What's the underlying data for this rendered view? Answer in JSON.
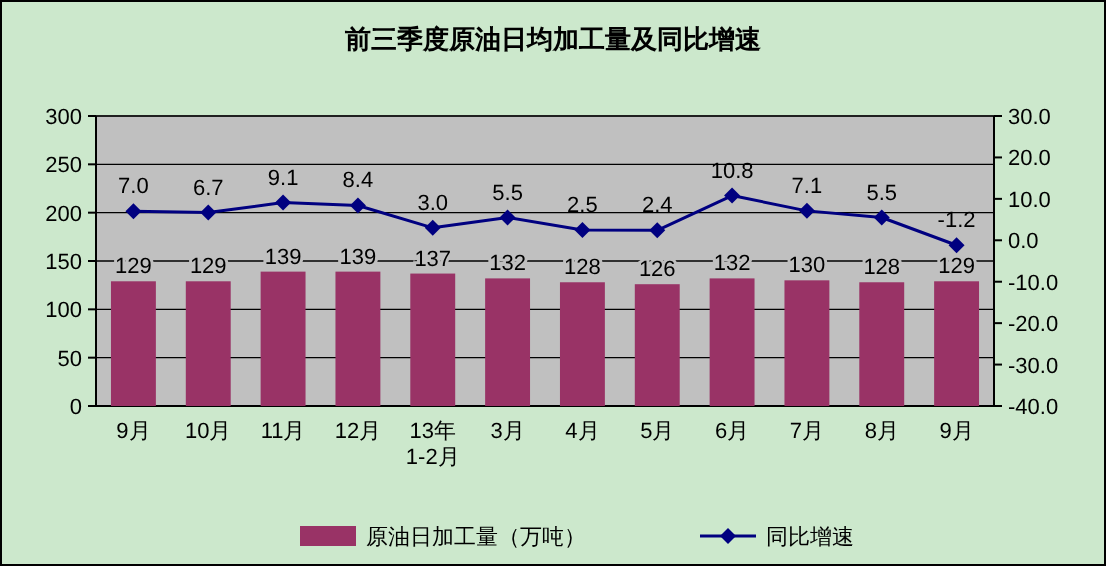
{
  "chart_data": {
    "type": "bar",
    "title": "前三季度原油日均加工量及同比增速",
    "categories": [
      "9月",
      "10月",
      "11月",
      "12月",
      "13年\n1-2月",
      "3月",
      "4月",
      "5月",
      "6月",
      "7月",
      "8月",
      "9月"
    ],
    "series": [
      {
        "name": "原油日加工量（万吨）",
        "color": "#993366",
        "values": [
          129,
          129,
          139,
          139,
          137,
          132,
          128,
          126,
          132,
          130,
          128,
          129
        ],
        "value_labels": [
          "129",
          "129",
          "139",
          "139",
          "137",
          "132",
          "128",
          "126",
          "132",
          "130",
          "128",
          "129"
        ]
      },
      {
        "name": "同比增速",
        "type": "line",
        "axis": "y2",
        "color": "#000080",
        "marker": "diamond",
        "values": [
          7.0,
          6.7,
          9.1,
          8.4,
          3.0,
          5.5,
          2.5,
          2.4,
          10.8,
          7.1,
          5.5,
          -1.2
        ],
        "value_labels": [
          "7.0",
          "6.7",
          "9.1",
          "8.4",
          "3.0",
          "5.5",
          "2.5",
          "2.4",
          "10.8",
          "7.1",
          "5.5",
          "-1.2"
        ]
      }
    ],
    "ylim": [
      0,
      300
    ],
    "yticks": [
      0,
      50,
      100,
      150,
      200,
      250,
      300
    ],
    "y2lim": [
      -40,
      30
    ],
    "y2ticks": [
      {
        "value": -40,
        "label": "-40.0"
      },
      {
        "value": -30,
        "label": "-30.0"
      },
      {
        "value": -20,
        "label": "-20.0"
      },
      {
        "value": -10,
        "label": "-10.0"
      },
      {
        "value": 0,
        "label": "0.0"
      },
      {
        "value": 10,
        "label": "10.0"
      },
      {
        "value": 20,
        "label": "20.0"
      },
      {
        "value": 30,
        "label": "30.0"
      }
    ],
    "grid": "y",
    "legend": "bottom"
  }
}
